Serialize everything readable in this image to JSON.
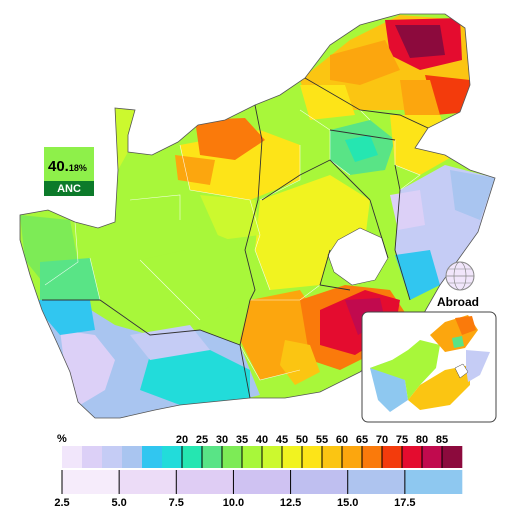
{
  "winner": {
    "value_int": "40.",
    "value_dec": "18",
    "unit": "%",
    "party": "ANC",
    "color": "#8ef04a"
  },
  "abroad_label": "Abroad",
  "colors": {
    "lesotho_bg": "#ffffff",
    "border": "#555555",
    "text": "#000000"
  },
  "scale_top": {
    "unit_label": "%",
    "ticks": [
      "20",
      "25",
      "30",
      "35",
      "40",
      "45",
      "50",
      "55",
      "60",
      "65",
      "70",
      "75",
      "80",
      "85"
    ],
    "colors": [
      "#f1e6fb",
      "#dcd0f7",
      "#c5ccf5",
      "#a9c5f0",
      "#31c6f0",
      "#22dcda",
      "#25e6b1",
      "#59e486",
      "#7deb56",
      "#a8f73a",
      "#ccf92e",
      "#f1f320",
      "#fde418",
      "#fbc512",
      "#fca60e",
      "#fa7a0b",
      "#f33b0c",
      "#e40c2f",
      "#c10a4e",
      "#8c0a3d"
    ]
  },
  "scale_bottom": {
    "ticks": [
      "2.5",
      "5.0",
      "7.5",
      "10.0",
      "12.5",
      "15.0",
      "17.5"
    ],
    "colors": [
      "#f6ecfb",
      "#ecdcf7",
      "#dfcdf4",
      "#cfc2f2",
      "#bfbff0",
      "#aec4ef",
      "#8ec8f0"
    ]
  }
}
